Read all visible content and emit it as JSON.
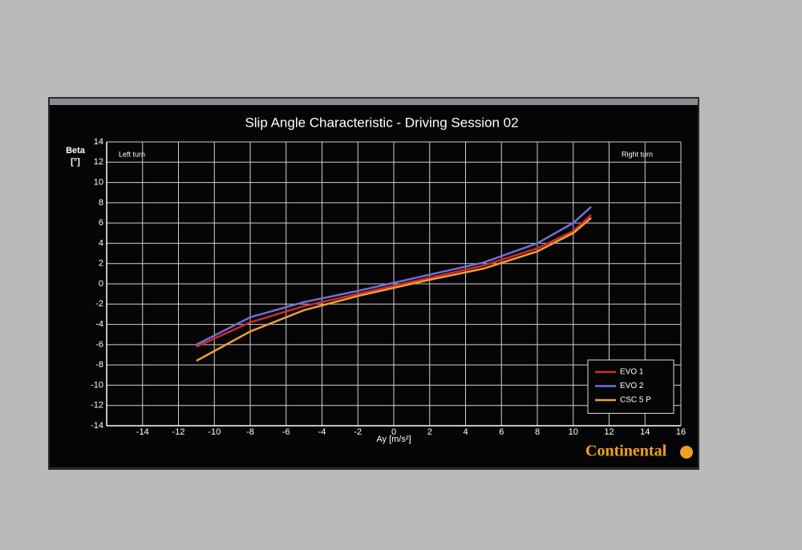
{
  "chart_data": {
    "type": "line",
    "title": "Slip Angle Characteristic - Driving Session 02",
    "xlabel": "Ay [m/s²]",
    "ylabel": "Beta",
    "ylabel_unit": "[°]",
    "annotations": [
      "Left turn",
      "Right turn"
    ],
    "logo": "Continental",
    "x": [
      -11,
      -8,
      -5,
      -2,
      0,
      2,
      5,
      8,
      10,
      11
    ],
    "series": [
      {
        "name": "EVO 1",
        "color": "#d42a2a",
        "values": [
          -6.2,
          -3.8,
          -2.2,
          -1.0,
          -0.2,
          0.6,
          1.8,
          3.5,
          5.2,
          6.8
        ]
      },
      {
        "name": "EVO 2",
        "color": "#6f6fd8",
        "values": [
          -6.0,
          -3.3,
          -1.8,
          -0.7,
          0.1,
          0.9,
          2.1,
          4.0,
          6.0,
          7.6
        ]
      },
      {
        "name": "CSC 5 P",
        "color": "#f0a030",
        "values": [
          -7.6,
          -4.7,
          -2.6,
          -1.2,
          -0.4,
          0.4,
          1.5,
          3.2,
          5.0,
          6.5
        ]
      }
    ],
    "xlim": [
      -16,
      16
    ],
    "xticks": [
      -14,
      -12,
      -10,
      -8,
      -6,
      -4,
      -2,
      0,
      2,
      4,
      6,
      8,
      10,
      12,
      14,
      16
    ],
    "ylim": [
      -14,
      14
    ],
    "yticks": [
      -14,
      -12,
      -10,
      -8,
      -6,
      -4,
      -2,
      0,
      2,
      4,
      6,
      8,
      10,
      12,
      14
    ],
    "grid": true,
    "legend": "lower right"
  }
}
